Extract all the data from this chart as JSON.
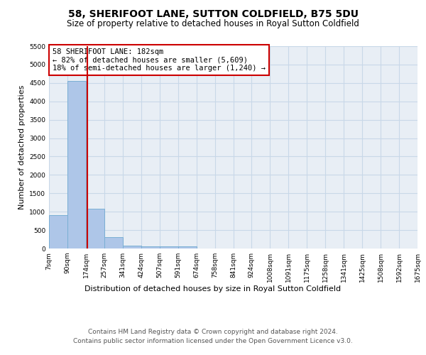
{
  "title": "58, SHERIFOOT LANE, SUTTON COLDFIELD, B75 5DU",
  "subtitle": "Size of property relative to detached houses in Royal Sutton Coldfield",
  "xlabel": "Distribution of detached houses by size in Royal Sutton Coldfield",
  "ylabel": "Number of detached properties",
  "bin_labels": [
    "7sqm",
    "90sqm",
    "174sqm",
    "257sqm",
    "341sqm",
    "424sqm",
    "507sqm",
    "591sqm",
    "674sqm",
    "758sqm",
    "841sqm",
    "924sqm",
    "1008sqm",
    "1091sqm",
    "1175sqm",
    "1258sqm",
    "1341sqm",
    "1425sqm",
    "1508sqm",
    "1592sqm",
    "1675sqm"
  ],
  "bin_edges": [
    7,
    90,
    174,
    257,
    341,
    424,
    507,
    591,
    674,
    758,
    841,
    924,
    1008,
    1091,
    1175,
    1258,
    1341,
    1425,
    1508,
    1592,
    1675
  ],
  "bar_heights": [
    900,
    4550,
    1080,
    300,
    80,
    60,
    60,
    50,
    0,
    0,
    0,
    0,
    0,
    0,
    0,
    0,
    0,
    0,
    0,
    0
  ],
  "bar_color": "#aec6e8",
  "bar_edgecolor": "#7aafd4",
  "property_line_x": 182,
  "property_line_color": "#cc0000",
  "annotation_text": "58 SHERIFOOT LANE: 182sqm\n← 82% of detached houses are smaller (5,609)\n18% of semi-detached houses are larger (1,240) →",
  "annotation_box_color": "#cc0000",
  "ylim": [
    0,
    5500
  ],
  "yticks": [
    0,
    500,
    1000,
    1500,
    2000,
    2500,
    3000,
    3500,
    4000,
    4500,
    5000,
    5500
  ],
  "grid_color": "#c8d8e8",
  "bg_color": "#e8eef5",
  "footer_line1": "Contains HM Land Registry data © Crown copyright and database right 2024.",
  "footer_line2": "Contains public sector information licensed under the Open Government Licence v3.0."
}
